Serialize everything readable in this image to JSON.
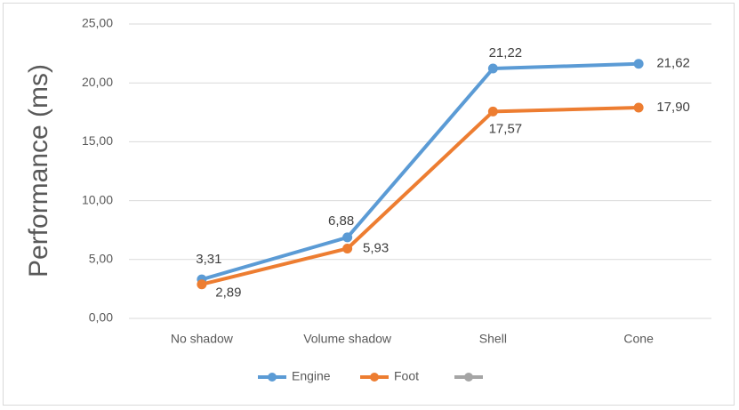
{
  "chart_data": {
    "type": "line",
    "y_label": "Performance (ms)",
    "categories": [
      "No shadow",
      "Volume shadow",
      "Shell",
      "Cone"
    ],
    "series": [
      {
        "name": "Engine",
        "color": "#5b9bd5",
        "values": [
          3.31,
          6.88,
          21.22,
          21.62
        ],
        "value_labels": [
          "3,31",
          "6,88",
          "21,22",
          "21,62"
        ]
      },
      {
        "name": "Foot",
        "color": "#ed7d31",
        "values": [
          2.89,
          5.93,
          17.57,
          17.9
        ],
        "value_labels": [
          "2,89",
          "5,93",
          "17,57",
          "17,90"
        ]
      }
    ],
    "ylim": [
      0,
      25
    ],
    "yticks": [
      {
        "value": 0,
        "label": "0,00"
      },
      {
        "value": 5,
        "label": "5,00"
      },
      {
        "value": 10,
        "label": "10,00"
      },
      {
        "value": 15,
        "label": "15,00"
      },
      {
        "value": 20,
        "label": "20,00"
      },
      {
        "value": 25,
        "label": "25,00"
      }
    ],
    "grid": true,
    "legend": "bottom"
  }
}
